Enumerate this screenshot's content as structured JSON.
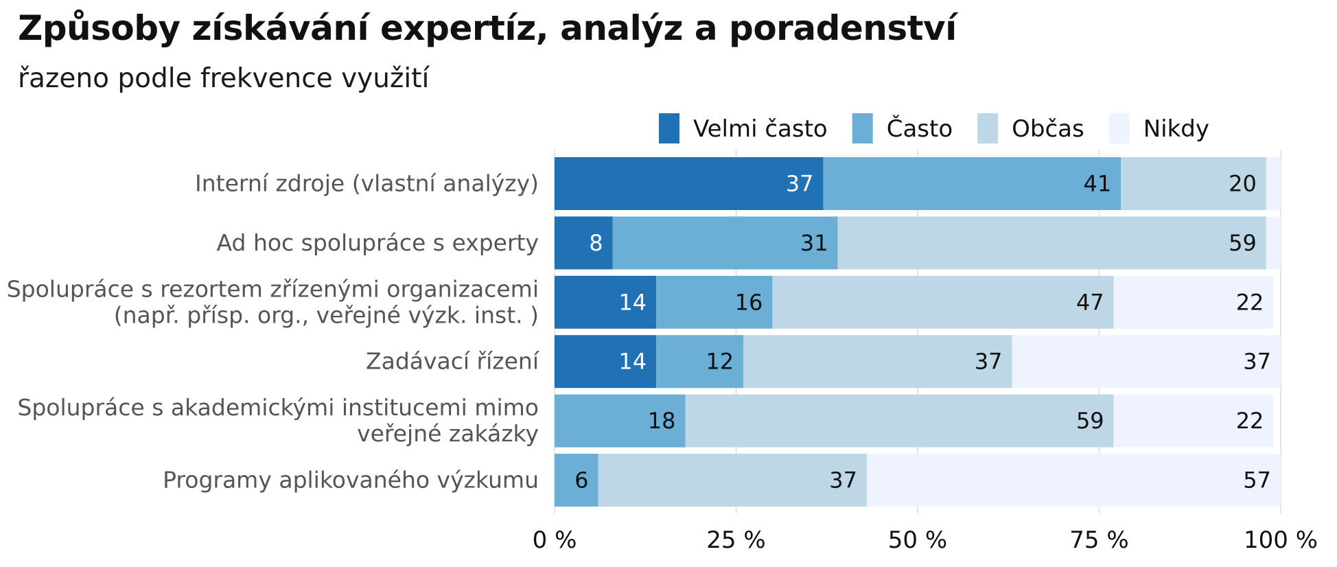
{
  "chart_data": {
    "type": "bar",
    "orientation": "horizontal",
    "stacked": true,
    "title": "Způsoby získávání expertíz, analýz a poradenství",
    "subtitle": "řazeno podle frekvence využití",
    "categories": [
      [
        "Interní zdroje (vlastní analýzy)"
      ],
      [
        "Ad hoc spolupráce s experty"
      ],
      [
        "Spolupráce s rezortem zřízenými organizacemi",
        "(např. přísp. org., veřejné výzk. inst. )"
      ],
      [
        "Zadávací řízení"
      ],
      [
        "Spolupráce s akademickými institucemi mimo",
        "veřejné zakázky"
      ],
      [
        "Programy aplikovaného výzkumu"
      ]
    ],
    "series": [
      {
        "name": "Velmi často",
        "color": "#2171b5",
        "label_color": "#ffffff",
        "values": [
          37,
          8,
          14,
          14,
          0,
          0
        ]
      },
      {
        "name": "Často",
        "color": "#6baed6",
        "label_color": "#111111",
        "values": [
          41,
          31,
          16,
          12,
          18,
          6
        ]
      },
      {
        "name": "Občas",
        "color": "#bdd7e7",
        "label_color": "#111111",
        "values": [
          20,
          59,
          47,
          37,
          59,
          37
        ]
      },
      {
        "name": "Nikdy",
        "color": "#eff3ff",
        "label_color": "#111111",
        "values": [
          2,
          2,
          22,
          37,
          22,
          57
        ]
      }
    ],
    "show_value_label": [
      [
        true,
        true,
        true,
        false
      ],
      [
        true,
        true,
        true,
        false
      ],
      [
        true,
        true,
        true,
        true
      ],
      [
        true,
        true,
        true,
        true
      ],
      [
        false,
        true,
        true,
        true
      ],
      [
        false,
        true,
        true,
        true
      ]
    ],
    "xlim": [
      0,
      100
    ],
    "xticks": [
      0,
      25,
      50,
      75,
      100
    ],
    "xtick_labels": [
      "0 %",
      "25 %",
      "50 %",
      "75 %",
      "100 %"
    ],
    "grid": true,
    "legend_position": "top-right"
  }
}
